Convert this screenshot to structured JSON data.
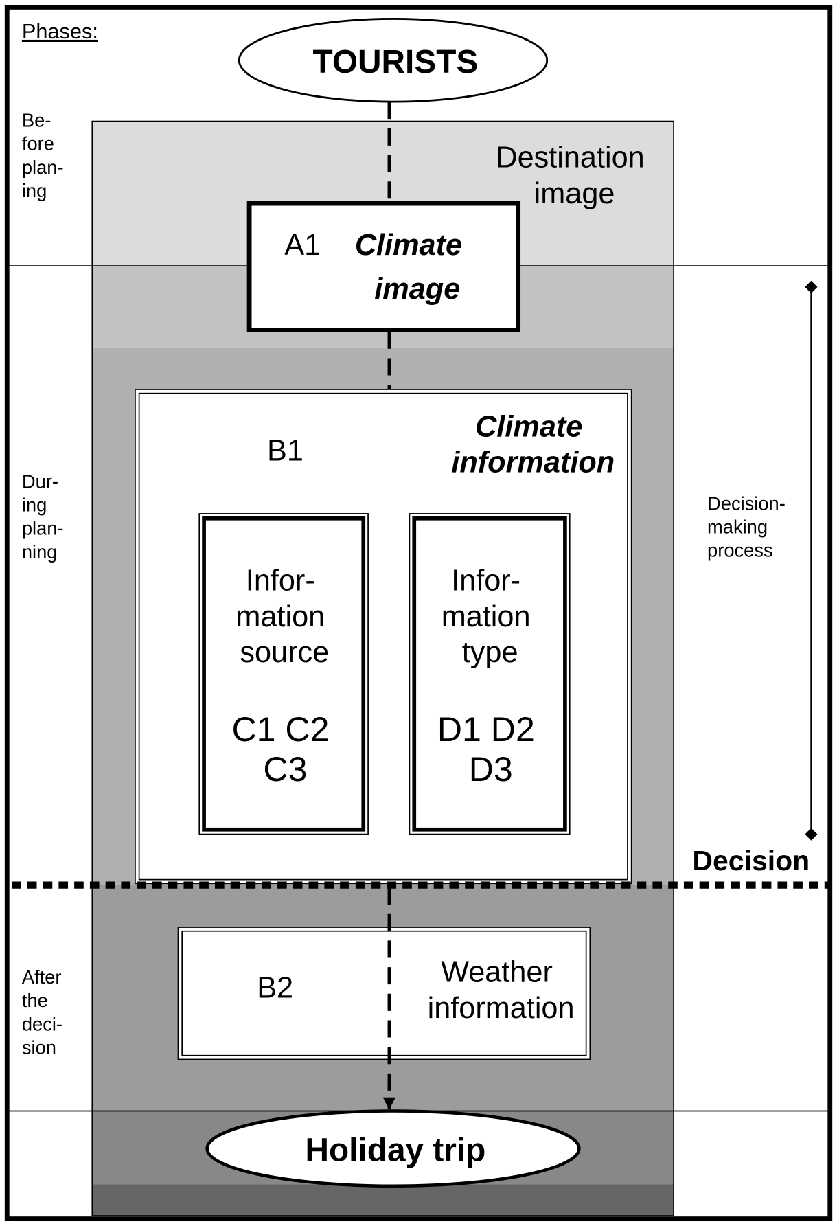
{
  "phases": {
    "label": "Phases:",
    "items": [
      {
        "lines": [
          "Be-",
          "fore",
          "plan-",
          "ing"
        ]
      },
      {
        "lines": [
          "Dur-",
          "ing",
          "plan-",
          "ning"
        ]
      },
      {
        "lines": [
          "After",
          "the",
          "deci-",
          "sion"
        ]
      }
    ]
  },
  "nodes": {
    "tourists": "TOURISTS",
    "destination_image": [
      "Destination",
      "image"
    ],
    "a1": {
      "code": "A1",
      "title": [
        "Climate",
        "image"
      ]
    },
    "b1": {
      "code": "B1",
      "title": [
        "Climate",
        "information"
      ]
    },
    "c": {
      "lines": [
        "Infor-",
        "mation",
        "source"
      ],
      "codes": [
        "C1 C2",
        "C3"
      ]
    },
    "d": {
      "lines": [
        "Infor-",
        "mation",
        "type"
      ],
      "codes": [
        "D1 D2",
        "D3"
      ]
    },
    "decision": "Decision",
    "decision_process": [
      "Decision-",
      "making",
      "process"
    ],
    "b2": {
      "code": "B2",
      "title": [
        "Weather",
        "information"
      ]
    },
    "holiday": "Holiday trip"
  }
}
